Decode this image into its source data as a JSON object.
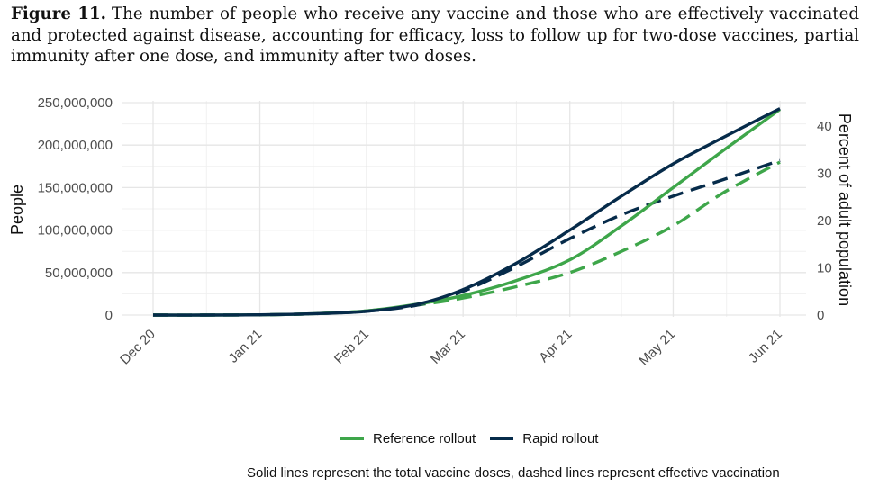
{
  "caption": {
    "label": "Figure 11.",
    "text": "The number of people who receive any vaccine and those who are effectively vaccinated and protected against disease, accounting for efficacy, loss to follow up for two-dose vaccines, partial immunity after one dose, and immunity after two doses."
  },
  "footnote": "Solid lines represent the total vaccine doses, dashed lines represent effective vaccination",
  "colors": {
    "reference": "#3ea64a",
    "rapid": "#062b4a",
    "grid": "#e6e6e6"
  },
  "chart_data": {
    "type": "line",
    "x": [
      "2020-12-01",
      "2020-12-16",
      "2021-01-01",
      "2021-01-16",
      "2021-02-01",
      "2021-02-16",
      "2021-03-01",
      "2021-03-16",
      "2021-04-01",
      "2021-04-16",
      "2021-05-01",
      "2021-05-16",
      "2021-06-01"
    ],
    "x_tick_labels": [
      "Dec 20",
      "Jan 21",
      "Feb 21",
      "Mar 21",
      "Apr 21",
      "May 21",
      "Jun 21"
    ],
    "x_tick_dates": [
      "2020-12-01",
      "2021-01-01",
      "2021-02-01",
      "2021-03-01",
      "2021-04-01",
      "2021-05-01",
      "2021-06-01"
    ],
    "ylabel": "People",
    "ylim": [
      0,
      250000000
    ],
    "y_ticks": [
      0,
      50000000,
      100000000,
      150000000,
      200000000,
      250000000
    ],
    "y_tick_labels": [
      "0",
      "50,000,000",
      "100,000,000",
      "150,000,000",
      "200,000,000",
      "250,000,000"
    ],
    "y2label": "Percent of adult population",
    "y2_ticks": [
      0,
      10,
      20,
      30,
      40
    ],
    "y2_tick_labels": [
      "0",
      "10",
      "20",
      "30",
      "40"
    ],
    "y2_per_person": 1.8e-07,
    "series": [
      {
        "name": "Reference rollout",
        "style": "solid",
        "color": "#3ea64a",
        "values": [
          0,
          0,
          300000,
          1500000,
          5000000,
          13000000,
          23000000,
          40000000,
          65000000,
          105000000,
          150000000,
          195000000,
          242000000
        ]
      },
      {
        "name": "Reference rollout",
        "style": "dashed",
        "color": "#3ea64a",
        "values": [
          0,
          0,
          300000,
          1500000,
          5000000,
          12000000,
          20000000,
          33000000,
          50000000,
          75000000,
          105000000,
          145000000,
          180000000
        ]
      },
      {
        "name": "Rapid rollout",
        "style": "solid",
        "color": "#062b4a",
        "values": [
          0,
          0,
          300000,
          1500000,
          4500000,
          13000000,
          30000000,
          60000000,
          100000000,
          140000000,
          178000000,
          210000000,
          243000000
        ]
      },
      {
        "name": "Rapid rollout",
        "style": "dashed",
        "color": "#062b4a",
        "values": [
          0,
          0,
          300000,
          1500000,
          4500000,
          12000000,
          28000000,
          56000000,
          90000000,
          118000000,
          140000000,
          160000000,
          182000000
        ]
      }
    ],
    "legend": [
      "Reference rollout",
      "Rapid rollout"
    ],
    "legend_position": "bottom",
    "grid": true
  }
}
